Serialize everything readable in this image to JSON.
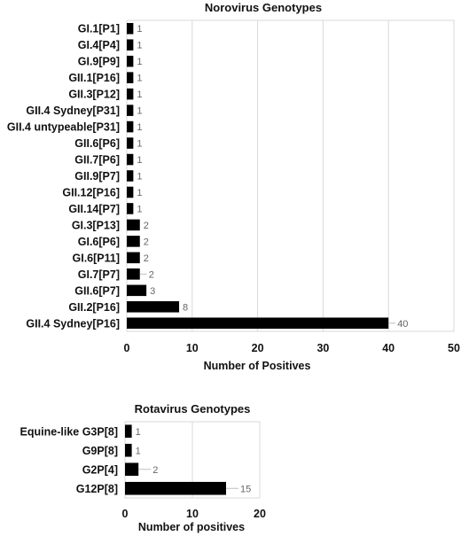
{
  "chart_data": [
    {
      "type": "bar",
      "orientation": "horizontal",
      "title": "Norovirus Genotypes",
      "xlabel": "Number of Positives",
      "ylabel": "",
      "xlim": [
        0,
        50
      ],
      "xticks": [
        0,
        10,
        20,
        30,
        40,
        50
      ],
      "grid": true,
      "categories": [
        "GI.1[P1]",
        "GI.4[P4]",
        "GI.9[P9]",
        "GII.1[P16]",
        "GII.3[P12]",
        "GII.4 Sydney[P31]",
        "GII.4 untypeable[P31]",
        "GII.6[P6]",
        "GII.7[P6]",
        "GII.9[P7]",
        "GII.12[P16]",
        "GII.14[P7]",
        "GI.3[P13]",
        "GI.6[P6]",
        "GI.6[P11]",
        "GI.7[P7]",
        "GII.6[P7]",
        "GII.2[P16]",
        "GII.4 Sydney[P16]"
      ],
      "values": [
        1,
        1,
        1,
        1,
        1,
        1,
        1,
        1,
        1,
        1,
        1,
        1,
        2,
        2,
        2,
        2,
        3,
        8,
        40
      ],
      "bar_color": "#000000"
    },
    {
      "type": "bar",
      "orientation": "horizontal",
      "title": "Rotavirus Genotypes",
      "xlabel": "Number of positives",
      "ylabel": "",
      "xlim": [
        0,
        20
      ],
      "xticks": [
        0,
        10,
        20
      ],
      "grid": true,
      "categories": [
        "Equine-like G3P[8]",
        "G9P[8]",
        "G2P[4]",
        "G12P[8]"
      ],
      "values": [
        1,
        1,
        2,
        15
      ],
      "bar_color": "#000000"
    }
  ]
}
